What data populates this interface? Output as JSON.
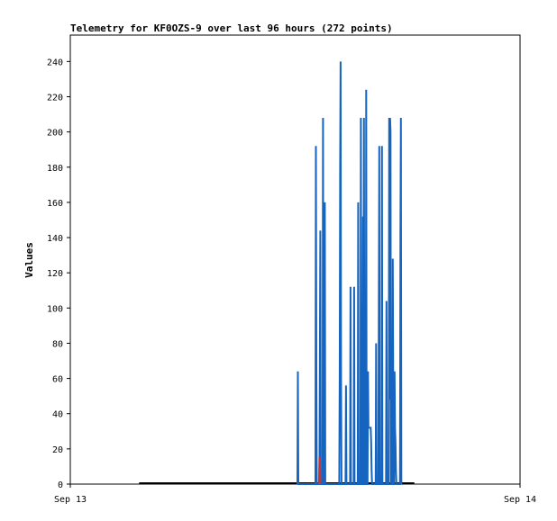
{
  "chart_data": {
    "type": "line",
    "title": "Telemetry for KF0OZS-9 over last 96 hours (272 points)",
    "xlabel": "",
    "ylabel": "Values",
    "x_ticks": [
      "Sep 13",
      "Sep 14"
    ],
    "y_ticks": [
      0,
      20,
      40,
      60,
      80,
      100,
      120,
      140,
      160,
      180,
      200,
      220,
      240
    ],
    "ylim": [
      0,
      255
    ],
    "xlim": [
      0,
      1
    ],
    "grid": false,
    "legend": "none",
    "colors": {
      "series_main": "#1565c0",
      "series_alt": "#d32f2f",
      "baseline": "#000000"
    },
    "baseline_range": [
      0.153,
      0.765
    ],
    "series": [
      {
        "color": "#1565c0",
        "points": [
          [
            0.505,
            0
          ],
          [
            0.506,
            64
          ],
          [
            0.507,
            0
          ],
          [
            0.545,
            0
          ],
          [
            0.546,
            192
          ],
          [
            0.547,
            64
          ],
          [
            0.548,
            0
          ],
          [
            0.554,
            0
          ],
          [
            0.555,
            72
          ],
          [
            0.556,
            144
          ],
          [
            0.557,
            0
          ],
          [
            0.561,
            0
          ],
          [
            0.562,
            208
          ],
          [
            0.563,
            0
          ],
          [
            0.565,
            0
          ],
          [
            0.566,
            160
          ],
          [
            0.567,
            0
          ],
          [
            0.598,
            0
          ],
          [
            0.599,
            60
          ],
          [
            0.6,
            180
          ],
          [
            0.601,
            240
          ],
          [
            0.602,
            60
          ],
          [
            0.603,
            0
          ],
          [
            0.612,
            0
          ],
          [
            0.613,
            56
          ],
          [
            0.614,
            0
          ],
          [
            0.622,
            0
          ],
          [
            0.623,
            112
          ],
          [
            0.624,
            0
          ],
          [
            0.63,
            0
          ],
          [
            0.631,
            112
          ],
          [
            0.632,
            0
          ],
          [
            0.639,
            0
          ],
          [
            0.64,
            160
          ],
          [
            0.641,
            0
          ],
          [
            0.645,
            0
          ],
          [
            0.646,
            208
          ],
          [
            0.647,
            0
          ],
          [
            0.65,
            0
          ],
          [
            0.651,
            152
          ],
          [
            0.652,
            48
          ],
          [
            0.653,
            208
          ],
          [
            0.654,
            0
          ],
          [
            0.657,
            0
          ],
          [
            0.658,
            224
          ],
          [
            0.659,
            0
          ],
          [
            0.661,
            0
          ],
          [
            0.662,
            64
          ],
          [
            0.663,
            32
          ],
          [
            0.664,
            32
          ],
          [
            0.668,
            32
          ],
          [
            0.669,
            24
          ],
          [
            0.67,
            8
          ],
          [
            0.671,
            0
          ],
          [
            0.679,
            0
          ],
          [
            0.68,
            80
          ],
          [
            0.681,
            0
          ],
          [
            0.685,
            0
          ],
          [
            0.686,
            96
          ],
          [
            0.687,
            192
          ],
          [
            0.688,
            0
          ],
          [
            0.692,
            0
          ],
          [
            0.693,
            192
          ],
          [
            0.694,
            0
          ],
          [
            0.702,
            0
          ],
          [
            0.703,
            104
          ],
          [
            0.704,
            0
          ],
          [
            0.708,
            0
          ],
          [
            0.709,
            208
          ],
          [
            0.71,
            48
          ],
          [
            0.711,
            208
          ],
          [
            0.712,
            200
          ],
          [
            0.713,
            0
          ],
          [
            0.716,
            0
          ],
          [
            0.717,
            128
          ],
          [
            0.718,
            56
          ],
          [
            0.719,
            0
          ],
          [
            0.72,
            0
          ],
          [
            0.721,
            64
          ],
          [
            0.722,
            32
          ],
          [
            0.723,
            24
          ],
          [
            0.724,
            8
          ],
          [
            0.725,
            0
          ],
          [
            0.733,
            0
          ],
          [
            0.734,
            144
          ],
          [
            0.735,
            208
          ],
          [
            0.736,
            0
          ]
        ]
      },
      {
        "color": "#d32f2f",
        "points": [
          [
            0.553,
            0
          ],
          [
            0.554,
            15
          ],
          [
            0.555,
            15
          ],
          [
            0.556,
            0
          ]
        ]
      }
    ]
  }
}
